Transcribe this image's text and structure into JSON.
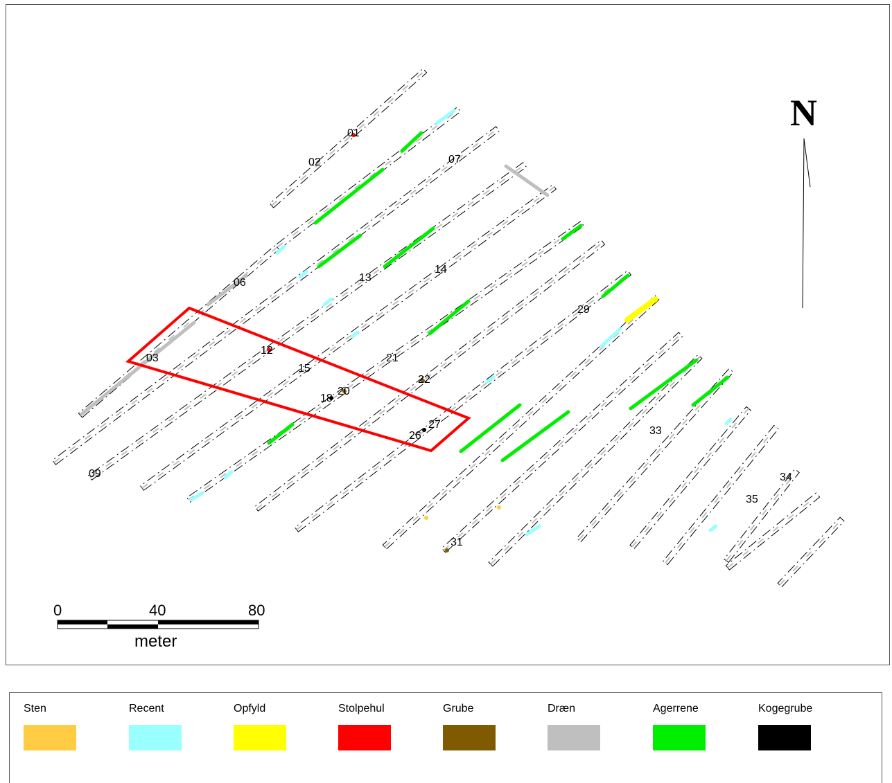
{
  "colors": {
    "sten": "#ffcc44",
    "recent": "#99ffff",
    "opfyld": "#ffff00",
    "stolpehul": "#ff0000",
    "grube": "#7f5a00",
    "draen": "#bfbfbf",
    "agerrene": "#00ee00",
    "kogegrube": "#000000",
    "outline": "#ff0000"
  },
  "north_arrow": {
    "letter": "N"
  },
  "scale_bar": {
    "ticks": [
      "0",
      "40",
      "80"
    ],
    "unit": "meter"
  },
  "trench_labels": [
    "01",
    "02",
    "07",
    "06",
    "13",
    "14",
    "29",
    "03",
    "12",
    "15",
    "21",
    "22",
    "18",
    "20",
    "27",
    "26",
    "33",
    "09",
    "34",
    "35",
    "31"
  ],
  "legend": [
    {
      "label": "Sten",
      "icon": "sten-swatch"
    },
    {
      "label": "Recent",
      "icon": "recent-swatch"
    },
    {
      "label": "Opfyld",
      "icon": "opfyld-swatch"
    },
    {
      "label": "Stolpehul",
      "icon": "stolpehul-swatch"
    },
    {
      "label": "Grube",
      "icon": "grube-swatch"
    },
    {
      "label": "Dræn",
      "icon": "draen-swatch"
    },
    {
      "label": "Agerrene",
      "icon": "agerrene-swatch"
    },
    {
      "label": "Kogegrube",
      "icon": "kogegrube-swatch"
    }
  ]
}
